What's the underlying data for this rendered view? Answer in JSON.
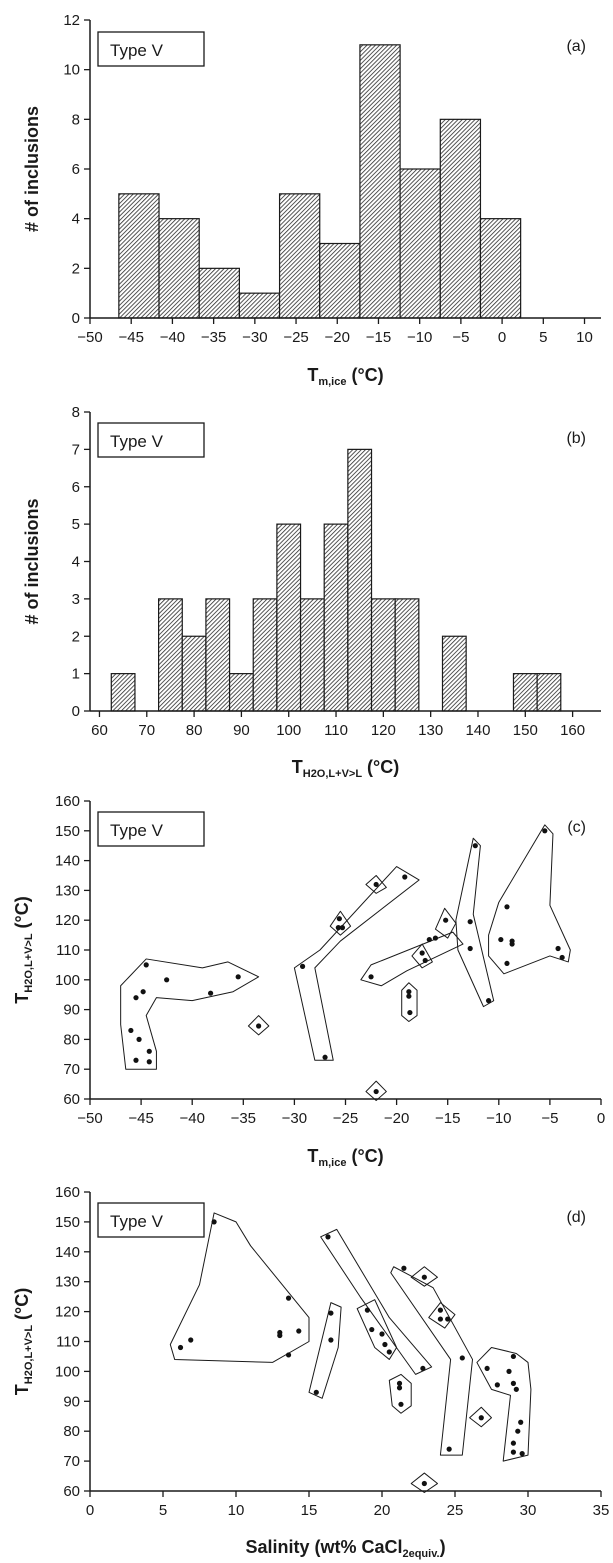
{
  "chart_data": [
    {
      "type": "bar",
      "panel": "(a)",
      "legend": "Type V",
      "xlabel": "T",
      "xlabel_sub": "m,ice",
      "xlabel_unit": " (°C)",
      "ylabel": "# of inclusions",
      "xlim": [
        -50,
        12
      ],
      "ylim": [
        0,
        12
      ],
      "xticks": [
        -50,
        -45,
        -40,
        -35,
        -30,
        -25,
        -20,
        -15,
        -10,
        -5,
        0,
        5,
        10
      ],
      "yticks": [
        0,
        2,
        4,
        6,
        8,
        10,
        12
      ],
      "bin_width": 4.875,
      "bin_starts": [
        -46.5,
        -41.625,
        -36.75,
        -31.875,
        -27.0,
        -22.125,
        -17.25,
        -12.375,
        -7.5,
        -2.625
      ],
      "values": [
        5,
        4,
        2,
        1,
        5,
        3,
        11,
        6,
        8,
        4
      ]
    },
    {
      "type": "bar",
      "panel": "(b)",
      "legend": "Type V",
      "xlabel": "T",
      "xlabel_sub": "H2O,L+V>L",
      "xlabel_unit": " (°C)",
      "ylabel": "# of inclusions",
      "xlim": [
        58,
        166
      ],
      "ylim": [
        0,
        8
      ],
      "xticks": [
        60,
        70,
        80,
        90,
        100,
        110,
        120,
        130,
        140,
        150,
        160
      ],
      "yticks": [
        0,
        1,
        2,
        3,
        4,
        5,
        6,
        7,
        8
      ],
      "bin_width": 5,
      "bin_starts": [
        62.5,
        67.5,
        72.5,
        77.5,
        82.5,
        87.5,
        92.5,
        97.5,
        102.5,
        107.5,
        112.5,
        117.5,
        122.5,
        127.5,
        132.5,
        137.5,
        142.5,
        147.5,
        152.5
      ],
      "values": [
        1,
        0,
        3,
        2,
        3,
        1,
        3,
        5,
        3,
        5,
        7,
        3,
        3,
        0,
        2,
        0,
        0,
        1,
        1
      ]
    },
    {
      "type": "scatter",
      "panel": "(c)",
      "legend": "Type V",
      "xlabel": "T",
      "xlabel_sub": "m,ice",
      "xlabel_unit": " (°C)",
      "ylabel": "T",
      "ylabel_sub": "H2O,L+V>L",
      "ylabel_unit": " (°C)",
      "xlim": [
        -50,
        0
      ],
      "ylim": [
        60,
        160
      ],
      "xticks": [
        -50,
        -45,
        -40,
        -35,
        -30,
        -25,
        -20,
        -15,
        -10,
        -5,
        0
      ],
      "yticks": [
        60,
        70,
        80,
        90,
        100,
        110,
        120,
        130,
        140,
        150,
        160
      ],
      "points": [
        [
          -45.5,
          94
        ],
        [
          -44.8,
          96
        ],
        [
          -44.5,
          105
        ],
        [
          -42.5,
          100
        ],
        [
          -38.2,
          95.5
        ],
        [
          -35.5,
          101
        ],
        [
          -46.0,
          83
        ],
        [
          -45.2,
          80
        ],
        [
          -44.2,
          76
        ],
        [
          -45.5,
          73
        ],
        [
          -44.2,
          72.5
        ],
        [
          -33.5,
          84.5
        ],
        [
          -29.2,
          104.5
        ],
        [
          -27.0,
          74
        ],
        [
          -25.6,
          120.5
        ],
        [
          -25.7,
          117.5
        ],
        [
          -25.3,
          117.5
        ],
        [
          -22.0,
          132
        ],
        [
          -19.2,
          134.5
        ],
        [
          -22.5,
          101
        ],
        [
          -18.8,
          96
        ],
        [
          -18.8,
          94.5
        ],
        [
          -18.7,
          89
        ],
        [
          -22.0,
          62.5
        ],
        [
          -17.5,
          109
        ],
        [
          -17.2,
          106.5
        ],
        [
          -16.8,
          113.5
        ],
        [
          -16.2,
          114
        ],
        [
          -15.2,
          120
        ],
        [
          -12.8,
          119.5
        ],
        [
          -12.8,
          110.5
        ],
        [
          -12.3,
          145
        ],
        [
          -11.0,
          93
        ],
        [
          -5.5,
          150
        ],
        [
          -9.8,
          113.5
        ],
        [
          -9.2,
          124.5
        ],
        [
          -9.2,
          105.5
        ],
        [
          -8.7,
          113
        ],
        [
          -8.7,
          112
        ],
        [
          -4.2,
          110.5
        ],
        [
          -3.8,
          107.5
        ]
      ],
      "outlines": [
        [
          [
            -47,
            98
          ],
          [
            -44.5,
            107
          ],
          [
            -39,
            104
          ],
          [
            -36.5,
            106
          ],
          [
            -33.5,
            101
          ],
          [
            -36,
            96
          ],
          [
            -40,
            93
          ],
          [
            -43.5,
            94
          ],
          [
            -44.5,
            88
          ],
          [
            -43.5,
            76
          ],
          [
            -43.5,
            70
          ],
          [
            -46.5,
            70
          ],
          [
            -47,
            85
          ]
        ],
        [
          [
            -34.5,
            84.5
          ],
          [
            -33.5,
            88
          ],
          [
            -32.5,
            84.5
          ],
          [
            -33.5,
            81.5
          ]
        ],
        [
          [
            -30,
            104
          ],
          [
            -27.5,
            110
          ],
          [
            -20,
            138
          ],
          [
            -17.8,
            133.5
          ],
          [
            -25.5,
            113
          ],
          [
            -28,
            104
          ],
          [
            -26.2,
            73
          ],
          [
            -28,
            73
          ]
        ],
        [
          [
            -26.5,
            118
          ],
          [
            -25.5,
            123
          ],
          [
            -24.5,
            118
          ],
          [
            -25.5,
            115
          ]
        ],
        [
          [
            -23,
            132
          ],
          [
            -22,
            135
          ],
          [
            -21,
            131
          ],
          [
            -22,
            129
          ]
        ],
        [
          [
            -23.5,
            100
          ],
          [
            -22.5,
            105
          ],
          [
            -14.5,
            116
          ],
          [
            -13.5,
            112
          ],
          [
            -19,
            103
          ],
          [
            -21.5,
            98
          ]
        ],
        [
          [
            -19.5,
            96.5
          ],
          [
            -18.8,
            99
          ],
          [
            -18,
            96.5
          ],
          [
            -18,
            88
          ],
          [
            -18.8,
            86
          ],
          [
            -19.5,
            88
          ]
        ],
        [
          [
            -23,
            62.5
          ],
          [
            -22,
            66
          ],
          [
            -21,
            62.5
          ],
          [
            -22,
            59.5
          ]
        ],
        [
          [
            -18.5,
            108
          ],
          [
            -17.5,
            112
          ],
          [
            -16.5,
            106
          ],
          [
            -17.5,
            104
          ]
        ],
        [
          [
            -16.2,
            117
          ],
          [
            -15.3,
            124
          ],
          [
            -14.2,
            119
          ],
          [
            -15,
            114
          ]
        ],
        [
          [
            -14.2,
            120
          ],
          [
            -12.5,
            147.5
          ],
          [
            -11.8,
            145
          ],
          [
            -12.5,
            122
          ],
          [
            -10.5,
            93
          ],
          [
            -11.5,
            91
          ],
          [
            -14,
            110
          ]
        ],
        [
          [
            -11,
            115
          ],
          [
            -10,
            126
          ],
          [
            -5.5,
            152
          ],
          [
            -4.7,
            149
          ],
          [
            -5,
            125
          ],
          [
            -3,
            110
          ],
          [
            -3.2,
            106
          ],
          [
            -5,
            108
          ],
          [
            -9.5,
            102
          ],
          [
            -11,
            108
          ]
        ]
      ]
    },
    {
      "type": "scatter",
      "panel": "(d)",
      "legend": "Type V",
      "xlabel": "Salinity (wt% CaCl",
      "xlabel_sub": "2equiv.",
      "xlabel_unit": ")",
      "ylabel": "T",
      "ylabel_sub": "H2O,L+V>L",
      "ylabel_unit": " (°C)",
      "xlim": [
        0,
        35
      ],
      "ylim": [
        60,
        160
      ],
      "xticks": [
        0,
        5,
        10,
        15,
        20,
        25,
        30,
        35
      ],
      "yticks": [
        60,
        70,
        80,
        90,
        100,
        110,
        120,
        130,
        140,
        150,
        160
      ],
      "points": [
        [
          8.5,
          150
        ],
        [
          6.2,
          108
        ],
        [
          6.9,
          110.5
        ],
        [
          13.0,
          113
        ],
        [
          13.0,
          112
        ],
        [
          13.6,
          124.5
        ],
        [
          13.6,
          105.5
        ],
        [
          14.3,
          113.5
        ],
        [
          15.5,
          93
        ],
        [
          16.5,
          119.5
        ],
        [
          16.5,
          110.5
        ],
        [
          16.3,
          145
        ],
        [
          19.0,
          120.5
        ],
        [
          19.3,
          114
        ],
        [
          20.0,
          112.5
        ],
        [
          20.2,
          109
        ],
        [
          20.5,
          106.5
        ],
        [
          22.8,
          101
        ],
        [
          21.2,
          96
        ],
        [
          21.2,
          94.5
        ],
        [
          21.3,
          89
        ],
        [
          21.5,
          134.5
        ],
        [
          22.9,
          131.5
        ],
        [
          24.0,
          120.5
        ],
        [
          24.0,
          117.5
        ],
        [
          24.5,
          117.5
        ],
        [
          25.5,
          104.5
        ],
        [
          24.6,
          74
        ],
        [
          22.9,
          62.5
        ],
        [
          26.8,
          84.5
        ],
        [
          27.2,
          101
        ],
        [
          27.9,
          95.5
        ],
        [
          28.7,
          100
        ],
        [
          29.0,
          105
        ],
        [
          29.0,
          96
        ],
        [
          29.2,
          94
        ],
        [
          29.5,
          83
        ],
        [
          29.3,
          80
        ],
        [
          29.0,
          76
        ],
        [
          29.0,
          73
        ],
        [
          29.6,
          72.5
        ]
      ],
      "outlines": [
        [
          [
            5.5,
            109
          ],
          [
            7.5,
            129
          ],
          [
            8.5,
            153
          ],
          [
            10,
            150
          ],
          [
            11,
            142
          ],
          [
            15,
            118
          ],
          [
            15,
            110
          ],
          [
            12.5,
            103
          ],
          [
            5.8,
            104
          ]
        ],
        [
          [
            15,
            93
          ],
          [
            16.5,
            123
          ],
          [
            17.2,
            121.5
          ],
          [
            17,
            108
          ],
          [
            15.9,
            91
          ]
        ],
        [
          [
            15.8,
            145
          ],
          [
            18.5,
            125
          ],
          [
            22.3,
            99
          ],
          [
            23.4,
            101.5
          ],
          [
            20.5,
            118
          ],
          [
            16.9,
            147.5
          ]
        ],
        [
          [
            18.3,
            121
          ],
          [
            19.5,
            124
          ],
          [
            21,
            108
          ],
          [
            20.5,
            104
          ],
          [
            19.5,
            108
          ]
        ],
        [
          [
            20.5,
            97
          ],
          [
            21.3,
            99
          ],
          [
            22,
            96
          ],
          [
            22,
            88.5
          ],
          [
            21.3,
            86
          ],
          [
            20.7,
            88.5
          ]
        ],
        [
          [
            20.8,
            135
          ],
          [
            23.5,
            128
          ],
          [
            26.2,
            104
          ],
          [
            25.5,
            72
          ],
          [
            24,
            72
          ],
          [
            24.7,
            104
          ],
          [
            20.6,
            133
          ]
        ],
        [
          [
            22,
            131.5
          ],
          [
            22.9,
            135
          ],
          [
            23.8,
            131.5
          ],
          [
            22.9,
            128.5
          ]
        ],
        [
          [
            23.2,
            118
          ],
          [
            24,
            123
          ],
          [
            25,
            119
          ],
          [
            24.3,
            114.5
          ]
        ],
        [
          [
            22,
            62.5
          ],
          [
            22.9,
            66
          ],
          [
            23.8,
            62.5
          ],
          [
            22.9,
            59.5
          ]
        ],
        [
          [
            26,
            84.5
          ],
          [
            26.8,
            88
          ],
          [
            27.5,
            84.5
          ],
          [
            26.8,
            81.5
          ]
        ],
        [
          [
            26.5,
            103
          ],
          [
            27.5,
            108
          ],
          [
            29.2,
            106
          ],
          [
            30,
            103
          ],
          [
            30.2,
            94
          ],
          [
            30,
            72
          ],
          [
            28.3,
            70
          ],
          [
            28.8,
            92
          ],
          [
            27.5,
            94
          ]
        ]
      ]
    }
  ]
}
